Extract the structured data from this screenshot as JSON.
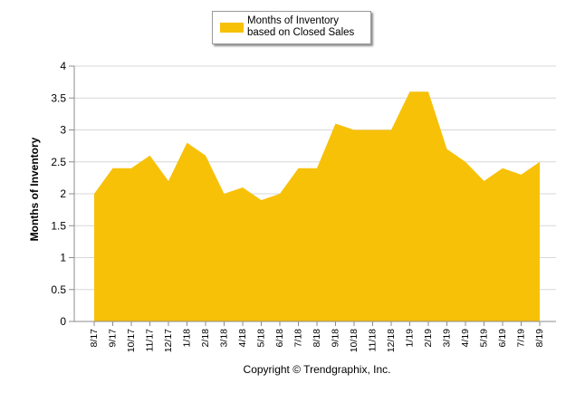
{
  "colors": {
    "area": "#F7C108",
    "grid": "#d7d7d7",
    "axis": "#8c8c8c"
  },
  "copyright": "Copyright © Trendgraphix, Inc.",
  "chart_data": {
    "type": "area",
    "title": "",
    "xlabel": "",
    "ylabel": "Months of Inventory",
    "ylim": [
      0,
      4
    ],
    "yticks": [
      "0",
      "0.5",
      "1",
      "1.5",
      "2",
      "2.5",
      "3",
      "3.5",
      "4"
    ],
    "grid": true,
    "legend_position": "top-center",
    "categories": [
      "8/17",
      "9/17",
      "10/17",
      "11/17",
      "12/17",
      "1/18",
      "2/18",
      "3/18",
      "4/18",
      "5/18",
      "6/18",
      "7/18",
      "8/18",
      "9/18",
      "10/18",
      "11/18",
      "12/18",
      "1/19",
      "2/19",
      "3/19",
      "4/19",
      "5/19",
      "6/19",
      "7/19",
      "8/19"
    ],
    "series": [
      {
        "name": "Months of Inventory based on Closed Sales",
        "values": [
          2.0,
          2.4,
          2.4,
          2.6,
          2.2,
          2.8,
          2.6,
          2.0,
          2.1,
          1.9,
          2.0,
          2.4,
          2.4,
          3.1,
          3.0,
          3.0,
          3.0,
          3.6,
          3.6,
          2.7,
          2.5,
          2.2,
          2.4,
          2.3,
          2.5
        ]
      }
    ]
  }
}
